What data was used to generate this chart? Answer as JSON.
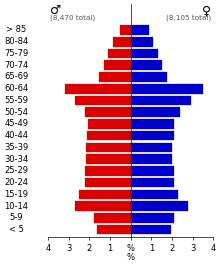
{
  "age_groups": [
    "< 5",
    "5-9",
    "10-14",
    "15-19",
    "20-24",
    "25-29",
    "30-34",
    "35-39",
    "40-44",
    "45-49",
    "50-54",
    "55-59",
    "60-64",
    "65-69",
    "70-74",
    "75-79",
    "80-84",
    "> 85"
  ],
  "male_pct": [
    1.65,
    1.8,
    2.7,
    2.5,
    2.2,
    2.2,
    2.15,
    2.15,
    2.1,
    2.05,
    2.2,
    2.7,
    3.2,
    1.55,
    1.3,
    1.1,
    0.85,
    0.5
  ],
  "female_pct": [
    1.95,
    2.1,
    2.8,
    2.3,
    2.1,
    2.1,
    2.0,
    2.0,
    2.1,
    2.1,
    2.4,
    2.9,
    3.5,
    1.75,
    1.5,
    1.3,
    1.1,
    0.9
  ],
  "male_color": "#dd0000",
  "female_color": "#0000cc",
  "male_total": "8,470 total",
  "female_total": "8,105 total",
  "male_symbol": "♂",
  "female_symbol": "♀",
  "xlim": 4.0,
  "background_color": "#ffffff",
  "bar_height": 0.82,
  "label_fontsize": 6.0,
  "tick_fontsize": 6.0,
  "symbol_fontsize": 9.0,
  "total_fontsize": 5.2
}
